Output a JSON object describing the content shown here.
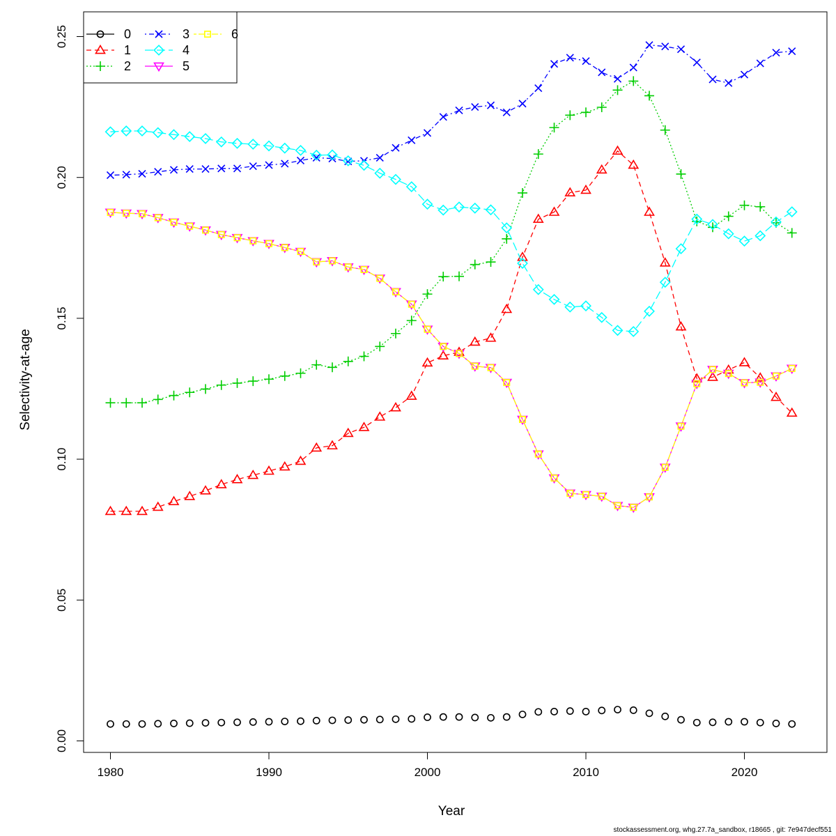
{
  "chart_data": {
    "type": "line",
    "title": "",
    "xlabel": "Year",
    "ylabel": "Selectivity-at-age",
    "xlim": [
      1980,
      2023
    ],
    "ylim": [
      0.0,
      0.25
    ],
    "xticks": [
      "1980",
      "1990",
      "2000",
      "2010",
      "2020"
    ],
    "yticks": [
      "0.00",
      "0.05",
      "0.10",
      "0.15",
      "0.20",
      "0.25"
    ],
    "legend_position": "top-left",
    "grid": false,
    "x": [
      1980,
      1981,
      1982,
      1983,
      1984,
      1985,
      1986,
      1987,
      1988,
      1989,
      1990,
      1991,
      1992,
      1993,
      1994,
      1995,
      1996,
      1997,
      1998,
      1999,
      2000,
      2001,
      2002,
      2003,
      2004,
      2005,
      2006,
      2007,
      2008,
      2009,
      2010,
      2011,
      2012,
      2013,
      2014,
      2015,
      2016,
      2017,
      2018,
      2019,
      2020,
      2021,
      2022,
      2023
    ],
    "series": [
      {
        "name": "0",
        "color": "#000000",
        "marker": "circle",
        "dash": "solid",
        "values": [
          0.006,
          0.006,
          0.006,
          0.0061,
          0.0062,
          0.0063,
          0.0064,
          0.0065,
          0.0066,
          0.0067,
          0.0068,
          0.0069,
          0.007,
          0.0072,
          0.0073,
          0.0074,
          0.0075,
          0.0076,
          0.0077,
          0.0078,
          0.0084,
          0.0085,
          0.0085,
          0.0083,
          0.0082,
          0.0085,
          0.0094,
          0.0103,
          0.0104,
          0.0106,
          0.0104,
          0.0108,
          0.0111,
          0.0109,
          0.0098,
          0.0087,
          0.0075,
          0.0065,
          0.0066,
          0.0068,
          0.0068,
          0.0065,
          0.0062,
          0.006
        ]
      },
      {
        "name": "1",
        "color": "#ff0000",
        "marker": "triangle-up",
        "dash": "dashed",
        "values": [
          0.0815,
          0.0815,
          0.0815,
          0.083,
          0.085,
          0.0868,
          0.0888,
          0.091,
          0.0928,
          0.0943,
          0.0958,
          0.0973,
          0.0993,
          0.104,
          0.1048,
          0.1092,
          0.1113,
          0.115,
          0.1183,
          0.1224,
          0.1342,
          0.1367,
          0.138,
          0.1416,
          0.143,
          0.1532,
          0.1717,
          0.1852,
          0.1877,
          0.1946,
          0.1955,
          0.2027,
          0.2094,
          0.2044,
          0.1877,
          0.1697,
          0.147,
          0.1286,
          0.1291,
          0.1317,
          0.1343,
          0.1289,
          0.122,
          0.1164
        ]
      },
      {
        "name": "2",
        "color": "#00cd00",
        "marker": "plus",
        "dash": "dotted",
        "values": [
          0.12,
          0.12,
          0.12,
          0.1212,
          0.1226,
          0.1237,
          0.1249,
          0.1263,
          0.127,
          0.1277,
          0.1284,
          0.1295,
          0.1305,
          0.1335,
          0.1326,
          0.1347,
          0.1365,
          0.14,
          0.1446,
          0.1492,
          0.1586,
          0.1648,
          0.1649,
          0.1691,
          0.17,
          0.1782,
          0.1945,
          0.2083,
          0.2177,
          0.2221,
          0.2231,
          0.2249,
          0.231,
          0.2342,
          0.229,
          0.2168,
          0.2012,
          0.1844,
          0.1823,
          0.1862,
          0.1901,
          0.1896,
          0.1839,
          0.1803
        ]
      },
      {
        "name": "3",
        "color": "#0000ff",
        "marker": "cross",
        "dash": "dotdash",
        "values": [
          0.2008,
          0.201,
          0.2013,
          0.202,
          0.2027,
          0.203,
          0.203,
          0.2032,
          0.2032,
          0.204,
          0.2044,
          0.2049,
          0.206,
          0.207,
          0.2067,
          0.2057,
          0.2059,
          0.207,
          0.2105,
          0.2132,
          0.2158,
          0.2215,
          0.2238,
          0.225,
          0.2256,
          0.2231,
          0.2262,
          0.2317,
          0.2403,
          0.2425,
          0.2413,
          0.2373,
          0.235,
          0.239,
          0.247,
          0.2465,
          0.2455,
          0.2408,
          0.2348,
          0.2335,
          0.2365,
          0.2405,
          0.2443,
          0.2448
        ]
      },
      {
        "name": "4",
        "color": "#00ffff",
        "marker": "diamond",
        "dash": "longdash",
        "values": [
          0.2162,
          0.2165,
          0.2165,
          0.2159,
          0.2152,
          0.2145,
          0.2138,
          0.2126,
          0.2121,
          0.2118,
          0.2112,
          0.2104,
          0.2096,
          0.2079,
          0.208,
          0.2059,
          0.2043,
          0.2015,
          0.1993,
          0.1967,
          0.1905,
          0.1884,
          0.1895,
          0.1891,
          0.1885,
          0.1821,
          0.1695,
          0.1602,
          0.1567,
          0.154,
          0.1544,
          0.1503,
          0.1457,
          0.1453,
          0.1525,
          0.1628,
          0.1747,
          0.1852,
          0.1833,
          0.18,
          0.1774,
          0.1793,
          0.1842,
          0.1878
        ]
      },
      {
        "name": "5",
        "color": "#ff00ff",
        "marker": "triangle-down",
        "dash": "solid",
        "values": [
          0.1876,
          0.1873,
          0.1871,
          0.1857,
          0.1841,
          0.1827,
          0.1813,
          0.1797,
          0.1786,
          0.1775,
          0.1765,
          0.1751,
          0.1737,
          0.17,
          0.1704,
          0.1682,
          0.1673,
          0.1642,
          0.1594,
          0.155,
          0.1461,
          0.14,
          0.1375,
          0.133,
          0.1325,
          0.1272,
          0.1141,
          0.1018,
          0.0933,
          0.0879,
          0.0874,
          0.0868,
          0.0835,
          0.0829,
          0.0866,
          0.0971,
          0.1117,
          0.1268,
          0.1318,
          0.1304,
          0.1271,
          0.1273,
          0.1295,
          0.1322
        ]
      },
      {
        "name": "6",
        "color": "#ffff00",
        "marker": "square",
        "dash": "twodash",
        "values": [
          0.1876,
          0.1873,
          0.1871,
          0.1857,
          0.1841,
          0.1827,
          0.1813,
          0.1797,
          0.1786,
          0.1775,
          0.1765,
          0.1751,
          0.1737,
          0.17,
          0.1704,
          0.1682,
          0.1673,
          0.1642,
          0.1594,
          0.155,
          0.1461,
          0.14,
          0.1375,
          0.133,
          0.1325,
          0.1272,
          0.1141,
          0.1018,
          0.0933,
          0.0879,
          0.0874,
          0.0868,
          0.0835,
          0.0829,
          0.0866,
          0.0971,
          0.1117,
          0.1268,
          0.1318,
          0.1304,
          0.1271,
          0.1273,
          0.1295,
          0.1322
        ]
      }
    ]
  },
  "footer": "stockassessment.org, whg.27.7a_sandbox, r18665 , git: 7e947decf551"
}
